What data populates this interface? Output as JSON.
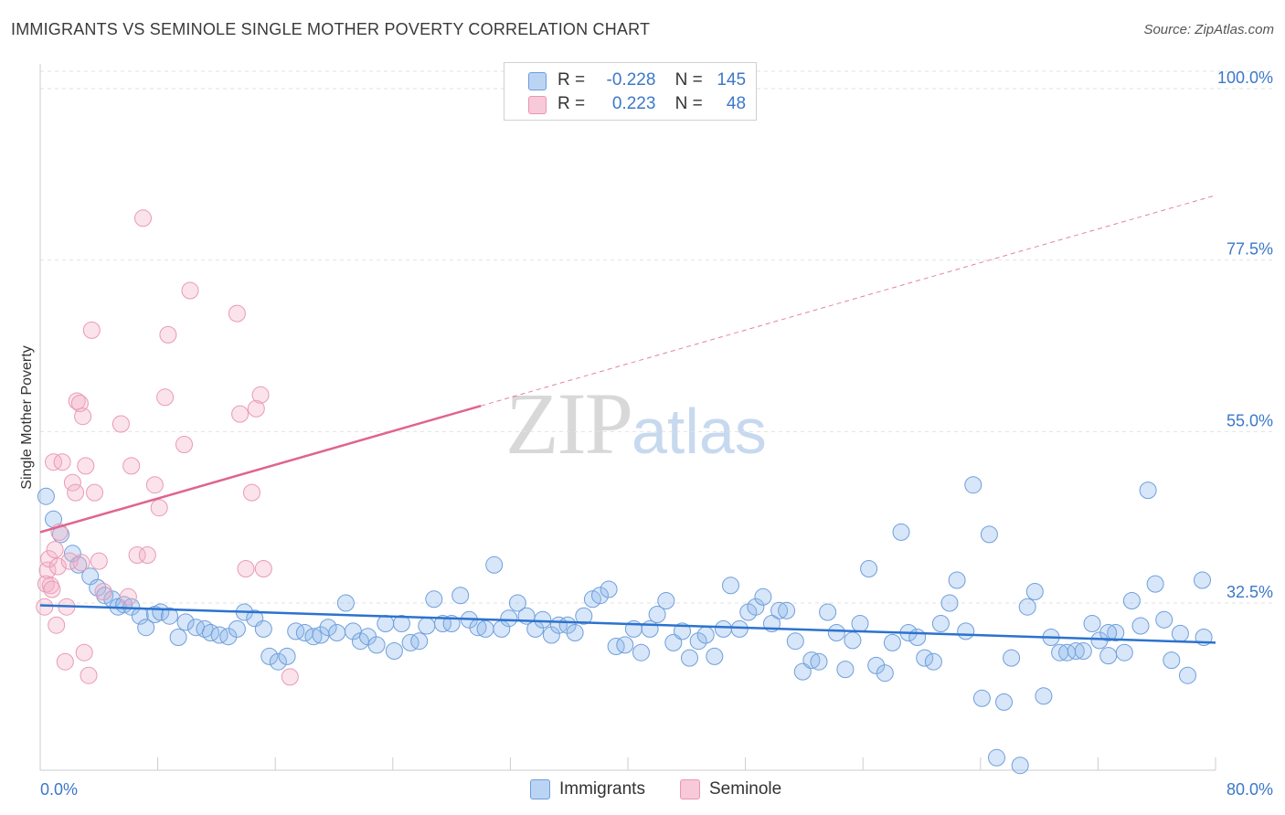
{
  "title": "IMMIGRANTS VS SEMINOLE SINGLE MOTHER POVERTY CORRELATION CHART",
  "source": "Source: ZipAtlas.com",
  "watermark": {
    "zip": "ZIP",
    "atlas": "atlas"
  },
  "legend": {
    "rows": [
      {
        "r_label": "R =",
        "r_value": "-0.228",
        "n_label": "N =",
        "n_value": "145"
      },
      {
        "r_label": "R =",
        "r_value": "0.223",
        "n_label": "N =",
        "n_value": "48"
      }
    ]
  },
  "bottom_legend": [
    "Immigrants",
    "Seminole"
  ],
  "chart_data": {
    "type": "scatter",
    "ylabel": "Single Mother Poverty",
    "xlabel": "",
    "xlim": [
      0,
      80
    ],
    "ylim": [
      10,
      105
    ],
    "x_tick_labels": [
      "0.0%",
      "80.0%"
    ],
    "y_ticks": [
      32.5,
      55.0,
      77.5,
      100.0
    ],
    "y_tick_labels": [
      "32.5%",
      "55.0%",
      "77.5%",
      "100.0%"
    ],
    "colors": {
      "Immigrants": "#5b93d8",
      "Seminole": "#ec8fae",
      "Immigrants_line": "#2c72cf",
      "Seminole_line": "#e0648c"
    },
    "series": [
      {
        "name": "Immigrants",
        "trend": {
          "x0": 0,
          "y0": 32.2,
          "x1": 80,
          "y1": 27.3,
          "dashed_from": null
        },
        "points": [
          [
            0.4,
            46.5
          ],
          [
            0.9,
            43.5
          ],
          [
            1.4,
            41.5
          ],
          [
            2.2,
            39
          ],
          [
            2.6,
            37.5
          ],
          [
            3.4,
            36
          ],
          [
            3.9,
            34.5
          ],
          [
            4.4,
            33.5
          ],
          [
            4.9,
            33
          ],
          [
            5.3,
            32
          ],
          [
            5.7,
            32.3
          ],
          [
            6.2,
            32
          ],
          [
            6.8,
            30.8
          ],
          [
            7.2,
            29.3
          ],
          [
            7.8,
            31
          ],
          [
            8.2,
            31.3
          ],
          [
            8.8,
            30.8
          ],
          [
            9.4,
            28
          ],
          [
            9.9,
            30
          ],
          [
            10.6,
            29.3
          ],
          [
            11.2,
            29.1
          ],
          [
            11.6,
            28.6
          ],
          [
            12.2,
            28.3
          ],
          [
            12.8,
            28.1
          ],
          [
            13.4,
            29.1
          ],
          [
            13.9,
            31.3
          ],
          [
            14.6,
            30.5
          ],
          [
            15.2,
            29.1
          ],
          [
            15.6,
            25.5
          ],
          [
            16.2,
            24.8
          ],
          [
            16.8,
            25.5
          ],
          [
            17.4,
            28.8
          ],
          [
            18.0,
            28.6
          ],
          [
            18.6,
            28.1
          ],
          [
            19.1,
            28.3
          ],
          [
            19.6,
            29.3
          ],
          [
            20.2,
            28.6
          ],
          [
            20.8,
            32.5
          ],
          [
            21.3,
            28.8
          ],
          [
            21.8,
            27.5
          ],
          [
            22.3,
            28.1
          ],
          [
            22.9,
            27.0
          ],
          [
            23.5,
            29.8
          ],
          [
            24.1,
            26.2
          ],
          [
            24.6,
            29.8
          ],
          [
            25.2,
            27.3
          ],
          [
            25.8,
            27.5
          ],
          [
            26.3,
            29.5
          ],
          [
            26.8,
            33
          ],
          [
            27.4,
            29.8
          ],
          [
            28.0,
            29.8
          ],
          [
            28.6,
            33.5
          ],
          [
            29.2,
            30.3
          ],
          [
            29.8,
            29.3
          ],
          [
            30.3,
            29.1
          ],
          [
            30.9,
            37.5
          ],
          [
            31.4,
            29.1
          ],
          [
            31.9,
            30.5
          ],
          [
            32.5,
            32.5
          ],
          [
            33.1,
            30.8
          ],
          [
            33.7,
            29.1
          ],
          [
            34.2,
            30.3
          ],
          [
            34.8,
            28.3
          ],
          [
            35.3,
            29.6
          ],
          [
            35.9,
            29.6
          ],
          [
            36.4,
            28.6
          ],
          [
            37.0,
            30.8
          ],
          [
            37.6,
            33
          ],
          [
            38.1,
            33.5
          ],
          [
            38.7,
            34.3
          ],
          [
            39.2,
            26.8
          ],
          [
            39.8,
            27.0
          ],
          [
            40.4,
            29.1
          ],
          [
            40.9,
            26.0
          ],
          [
            41.5,
            29.1
          ],
          [
            42.0,
            31.0
          ],
          [
            42.6,
            32.8
          ],
          [
            43.1,
            27.3
          ],
          [
            43.7,
            28.8
          ],
          [
            44.2,
            25.3
          ],
          [
            44.8,
            27.5
          ],
          [
            45.3,
            28.3
          ],
          [
            45.9,
            25.5
          ],
          [
            46.5,
            29.1
          ],
          [
            47.0,
            34.8
          ],
          [
            47.6,
            29.1
          ],
          [
            48.2,
            31.3
          ],
          [
            48.7,
            32.0
          ],
          [
            49.2,
            33.3
          ],
          [
            49.8,
            29.8
          ],
          [
            50.3,
            31.5
          ],
          [
            50.8,
            31.5
          ],
          [
            51.4,
            27.5
          ],
          [
            51.9,
            23.5
          ],
          [
            52.5,
            25.0
          ],
          [
            53.0,
            24.8
          ],
          [
            53.6,
            31.3
          ],
          [
            54.2,
            28.6
          ],
          [
            54.8,
            23.8
          ],
          [
            55.3,
            27.6
          ],
          [
            55.8,
            29.8
          ],
          [
            56.4,
            37.0
          ],
          [
            56.9,
            24.3
          ],
          [
            57.5,
            23.3
          ],
          [
            58.0,
            27.3
          ],
          [
            58.6,
            41.8
          ],
          [
            59.1,
            28.6
          ],
          [
            59.7,
            28.0
          ],
          [
            60.2,
            25.3
          ],
          [
            60.8,
            24.8
          ],
          [
            61.3,
            29.8
          ],
          [
            61.9,
            32.5
          ],
          [
            62.4,
            35.5
          ],
          [
            63.0,
            28.8
          ],
          [
            63.5,
            48.0
          ],
          [
            64.1,
            20.0
          ],
          [
            64.6,
            41.5
          ],
          [
            65.1,
            12.2
          ],
          [
            65.6,
            19.5
          ],
          [
            66.1,
            25.3
          ],
          [
            66.7,
            11.2
          ],
          [
            67.2,
            32.0
          ],
          [
            67.7,
            34.0
          ],
          [
            68.3,
            20.3
          ],
          [
            68.8,
            28.0
          ],
          [
            69.4,
            26.0
          ],
          [
            69.9,
            26.0
          ],
          [
            70.5,
            26.2
          ],
          [
            71.0,
            26.2
          ],
          [
            71.6,
            29.8
          ],
          [
            72.1,
            27.6
          ],
          [
            72.7,
            25.6
          ],
          [
            73.2,
            28.6
          ],
          [
            73.8,
            26.0
          ],
          [
            74.3,
            32.8
          ],
          [
            74.9,
            29.5
          ],
          [
            75.4,
            47.3
          ],
          [
            75.9,
            35.0
          ],
          [
            76.5,
            30.3
          ],
          [
            77.0,
            25.0
          ],
          [
            77.6,
            28.5
          ],
          [
            78.1,
            23.0
          ],
          [
            79.1,
            35.5
          ],
          [
            72.7,
            28.6
          ],
          [
            79.2,
            28.0
          ]
        ]
      },
      {
        "name": "Seminole",
        "trend": {
          "x0": 0,
          "y0": 41.8,
          "x1": 80,
          "y1": 86.0,
          "dashed_from": 30
        },
        "points": [
          [
            0.3,
            32
          ],
          [
            0.4,
            35
          ],
          [
            0.5,
            36.8
          ],
          [
            0.6,
            38.3
          ],
          [
            0.7,
            34.8
          ],
          [
            0.8,
            34.3
          ],
          [
            0.9,
            51.0
          ],
          [
            1.0,
            39.5
          ],
          [
            1.1,
            29.6
          ],
          [
            1.2,
            37.3
          ],
          [
            1.3,
            41.8
          ],
          [
            1.5,
            51.0
          ],
          [
            1.7,
            24.8
          ],
          [
            1.8,
            32.0
          ],
          [
            2.0,
            38.0
          ],
          [
            2.2,
            48.3
          ],
          [
            2.4,
            47.0
          ],
          [
            2.5,
            59.0
          ],
          [
            2.7,
            58.7
          ],
          [
            2.8,
            37.8
          ],
          [
            2.9,
            57.0
          ],
          [
            3.0,
            26.0
          ],
          [
            3.1,
            50.5
          ],
          [
            3.3,
            23.0
          ],
          [
            3.5,
            68.3
          ],
          [
            3.7,
            47.0
          ],
          [
            4.0,
            38.0
          ],
          [
            4.3,
            34.0
          ],
          [
            5.5,
            56.0
          ],
          [
            6.0,
            33.3
          ],
          [
            6.2,
            50.5
          ],
          [
            6.6,
            38.8
          ],
          [
            7.0,
            83.0
          ],
          [
            7.3,
            38.8
          ],
          [
            7.8,
            48.0
          ],
          [
            8.1,
            45.0
          ],
          [
            8.5,
            59.5
          ],
          [
            8.7,
            67.7
          ],
          [
            9.8,
            53.3
          ],
          [
            10.2,
            73.5
          ],
          [
            13.4,
            70.5
          ],
          [
            13.6,
            57.3
          ],
          [
            14.0,
            37.0
          ],
          [
            14.4,
            47.0
          ],
          [
            14.7,
            58.0
          ],
          [
            15.0,
            59.8
          ],
          [
            15.2,
            37.0
          ],
          [
            17.0,
            22.8
          ]
        ]
      }
    ]
  }
}
